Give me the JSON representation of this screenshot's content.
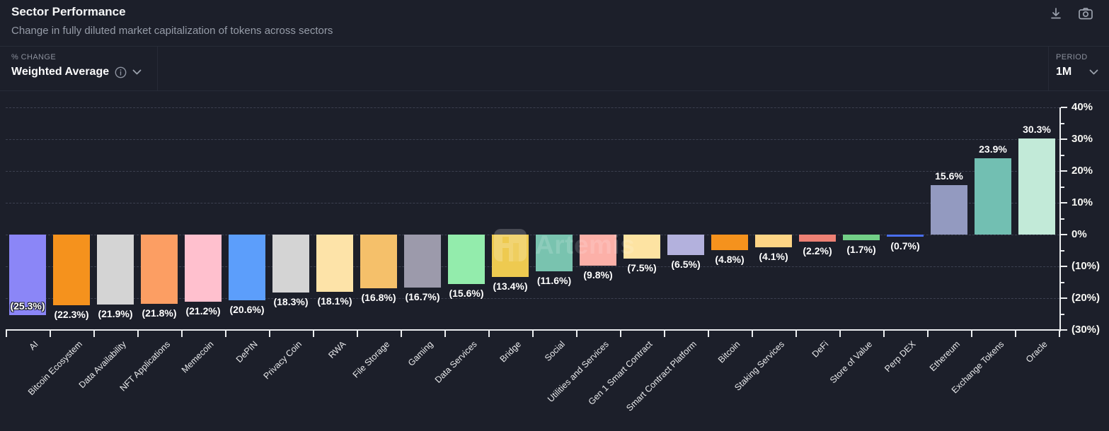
{
  "header": {
    "title": "Sector Performance",
    "subtitle": "Change in fully diluted market capitalization of tokens across sectors"
  },
  "toolbar": {
    "download_icon": "download",
    "screenshot_icon": "camera"
  },
  "controls": {
    "metric": {
      "label": "% CHANGE",
      "value": "Weighted Average",
      "info_icon": "info-circle",
      "chevron_icon": "chevron-down"
    },
    "period": {
      "label": "PERIOD",
      "value": "1M",
      "chevron_icon": "chevron-down"
    }
  },
  "watermark": {
    "text": "Artemis"
  },
  "chart_data": {
    "type": "bar",
    "title": "Sector Performance",
    "xlabel": "",
    "ylabel": "% change",
    "categories": [
      "AI",
      "Bitcoin Ecosystem",
      "Data Availability",
      "NFT Applications",
      "Memecoin",
      "DePIN",
      "Privacy Coin",
      "RWA",
      "File Storage",
      "Gaming",
      "Data Services",
      "Bridge",
      "Social",
      "Utilities and Services",
      "Gen 1 Smart Contract",
      "Smart Contract Platform",
      "Bitcoin",
      "Staking Services",
      "DeFi",
      "Store of Value",
      "Perp DEX",
      "Ethereum",
      "Exchange Tokens",
      "Oracle"
    ],
    "values": [
      -25.3,
      -22.3,
      -21.9,
      -21.8,
      -21.2,
      -20.6,
      -18.3,
      -18.1,
      -16.8,
      -16.7,
      -15.6,
      -13.4,
      -11.6,
      -9.8,
      -7.5,
      -6.5,
      -4.8,
      -4.1,
      -2.2,
      -1.7,
      -0.7,
      15.6,
      23.9,
      30.3
    ],
    "value_labels": [
      "(25.3%)",
      "(22.3%)",
      "(21.9%)",
      "(21.8%)",
      "(21.2%)",
      "(20.6%)",
      "(18.3%)",
      "(18.1%)",
      "(16.8%)",
      "(16.7%)",
      "(15.6%)",
      "(13.4%)",
      "(11.6%)",
      "(9.8%)",
      "(7.5%)",
      "(6.5%)",
      "(4.8%)",
      "(4.1%)",
      "(2.2%)",
      "(1.7%)",
      "(0.7%)",
      "15.6%",
      "23.9%",
      "30.3%"
    ],
    "bar_colors": [
      "#8b86f7",
      "#f5921d",
      "#d4d4d4",
      "#fc9e63",
      "#ffc0ce",
      "#5c9efb",
      "#d4d4d4",
      "#fde3a8",
      "#f5c06a",
      "#9c9aab",
      "#93ecac",
      "#eeca50",
      "#79c3af",
      "#fcb0a8",
      "#fde3a2",
      "#b3b1dd",
      "#f5921d",
      "#fdd485",
      "#ed8074",
      "#72cf87",
      "#4a6ff0",
      "#939ac0",
      "#72bfb2",
      "#c2ead8"
    ],
    "ylim": [
      -30,
      40
    ],
    "yticks": [
      {
        "value": 40,
        "label": "40%"
      },
      {
        "value": 30,
        "label": "30%"
      },
      {
        "value": 20,
        "label": "20%"
      },
      {
        "value": 10,
        "label": "10%"
      },
      {
        "value": 0,
        "label": "0%"
      },
      {
        "value": -10,
        "label": "(10%)"
      },
      {
        "value": -20,
        "label": "(20%)"
      },
      {
        "value": -30,
        "label": "(30%)"
      }
    ],
    "grid": "dashed horizontal gridlines every 10%, y-axis on right side",
    "legend_position": "none"
  },
  "colors": {
    "background": "#1c1f2a",
    "axis": "#eceef0",
    "gridline": "#3c4050",
    "text_primary": "#f4f5f6",
    "text_secondary": "#969ca8",
    "divider": "#272b37"
  }
}
